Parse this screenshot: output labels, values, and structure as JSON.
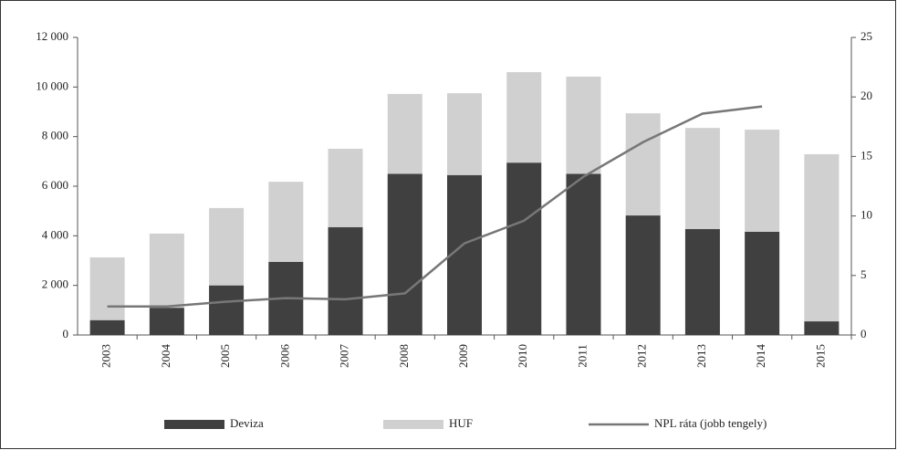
{
  "chart_data": {
    "type": "bar",
    "stacked": true,
    "categories": [
      "2003",
      "2004",
      "2005",
      "2006",
      "2007",
      "2008",
      "2009",
      "2010",
      "2011",
      "2012",
      "2013",
      "2014",
      "2015"
    ],
    "series": [
      {
        "name": "Deviza",
        "color": "#404040",
        "values": [
          600,
          1100,
          2000,
          2950,
          4350,
          6500,
          6450,
          6950,
          6500,
          4820,
          4270,
          4160,
          550
        ]
      },
      {
        "name": "HUF",
        "color": "#d0d0d0",
        "values": [
          2530,
          2990,
          3120,
          3230,
          3160,
          3220,
          3300,
          3650,
          3920,
          4120,
          4080,
          4120,
          6740
        ]
      },
      {
        "name": "NPL ráta (jobb tengely)",
        "color": "#777777",
        "type": "line",
        "axis": "y2",
        "values": [
          2.4,
          2.4,
          2.8,
          3.1,
          3.0,
          3.5,
          7.7,
          9.6,
          13.3,
          16.2,
          18.6,
          19.2,
          null
        ]
      }
    ],
    "ylim": [
      0,
      12000
    ],
    "yticks": [
      0,
      {
        "value": 2000,
        "label": "2 000"
      },
      {
        "value": 4000,
        "label": "4 000"
      },
      {
        "value": 6000,
        "label": "6 000"
      },
      {
        "value": 8000,
        "label": "8 000"
      },
      {
        "value": 10000,
        "label": "10 000"
      },
      {
        "value": 12000,
        "label": "12 000"
      }
    ],
    "y2lim": [
      0,
      25
    ],
    "y2ticks": [
      0,
      5,
      10,
      15,
      20,
      25
    ],
    "grid": false,
    "legend": "bottom"
  }
}
